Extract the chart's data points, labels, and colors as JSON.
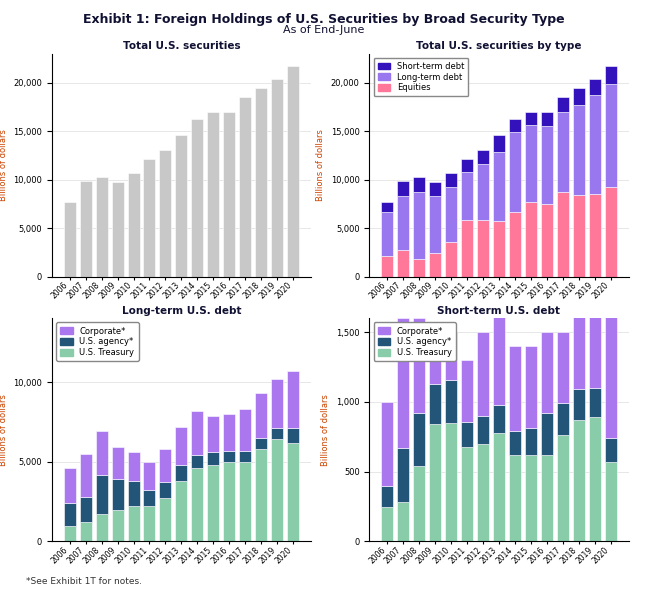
{
  "title": "Exhibit 1: Foreign Holdings of U.S. Securities by Broad Security Type",
  "subtitle": "As of End-June",
  "footnote": "*See Exhibit 1T for notes.",
  "years": [
    "2006",
    "2007",
    "2008",
    "2009",
    "2010",
    "2011",
    "2012",
    "2013",
    "2014",
    "2015",
    "2016",
    "2017",
    "2018",
    "2019",
    "2020"
  ],
  "total_securities": [
    7700,
    9900,
    10300,
    9800,
    10700,
    12100,
    13100,
    14600,
    16300,
    17000,
    17000,
    18500,
    19500,
    20400,
    21700
  ],
  "equities": [
    2100,
    2800,
    1800,
    2400,
    3600,
    5800,
    5800,
    5700,
    6700,
    7700,
    7500,
    8700,
    8400,
    8500,
    9200
  ],
  "long_term_debt": [
    4600,
    5500,
    6900,
    5900,
    5600,
    5000,
    5800,
    7200,
    8200,
    7900,
    8000,
    8300,
    9300,
    10200,
    10700
  ],
  "short_term_debt": [
    1000,
    1600,
    1600,
    1500,
    1500,
    1300,
    1500,
    1700,
    1400,
    1400,
    1500,
    1500,
    1800,
    1700,
    1800
  ],
  "lt_treasury": [
    1000,
    1200,
    1700,
    2000,
    2200,
    2200,
    2700,
    3800,
    4600,
    4800,
    5000,
    5000,
    5800,
    6400,
    6200
  ],
  "lt_agency": [
    1400,
    1600,
    2500,
    1900,
    1600,
    1000,
    1000,
    1000,
    800,
    800,
    700,
    700,
    700,
    700,
    900
  ],
  "lt_corporate": [
    2200,
    2700,
    2700,
    2000,
    1800,
    1800,
    2100,
    2400,
    2800,
    2300,
    2300,
    2600,
    2800,
    3100,
    3600
  ],
  "st_treasury": [
    250,
    280,
    540,
    840,
    850,
    680,
    700,
    780,
    620,
    620,
    620,
    760,
    870,
    890,
    570
  ],
  "st_agency": [
    150,
    390,
    380,
    290,
    310,
    180,
    200,
    200,
    170,
    190,
    300,
    230,
    220,
    210,
    170
  ],
  "st_corporate": [
    600,
    930,
    680,
    370,
    340,
    440,
    600,
    720,
    610,
    590,
    580,
    510,
    710,
    600,
    1060
  ],
  "color_gray": "#c8c8c8",
  "color_short_term": "#3311bb",
  "color_long_term": "#9977ee",
  "color_equities": "#ff7799",
  "color_lt_corporate": "#aa77ee",
  "color_lt_agency": "#225577",
  "color_lt_treasury": "#88ccaa",
  "color_st_corporate": "#aa77ee",
  "color_st_agency": "#225577",
  "color_st_treasury": "#88ccaa",
  "title_color": "#111133",
  "axis_label_color": "#cc4400"
}
